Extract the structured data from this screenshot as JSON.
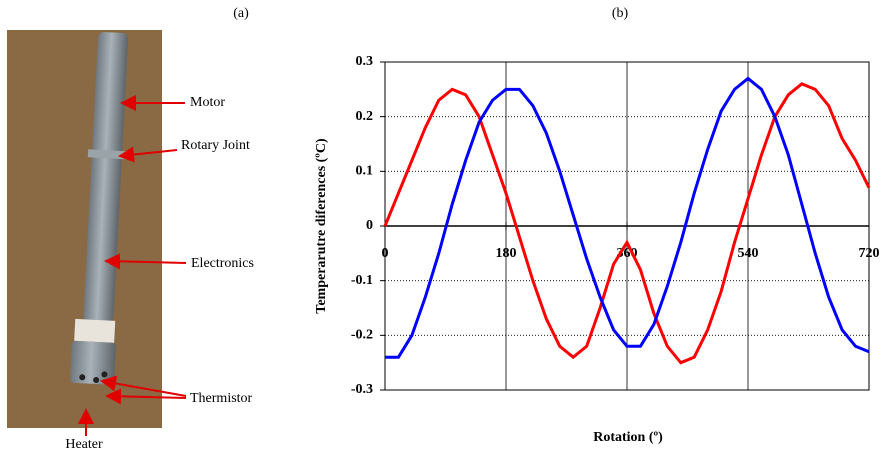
{
  "photo": {
    "label": "(a)",
    "callouts": [
      "Motor",
      "Rotary Joint",
      "Electronics",
      "Thermistor",
      "Heater"
    ]
  },
  "chart_data": {
    "type": "line",
    "panel_label": "(b)",
    "x_label": "Rotation (º)",
    "y_label": "Temperarutre diferences (ºC)",
    "x": [
      0,
      20,
      40,
      60,
      80,
      100,
      120,
      140,
      160,
      180,
      200,
      220,
      240,
      260,
      280,
      300,
      320,
      340,
      360,
      380,
      400,
      420,
      440,
      460,
      480,
      500,
      520,
      540,
      560,
      580,
      600,
      620,
      640,
      660,
      680,
      700,
      720
    ],
    "series": [
      {
        "color": "#ff0000",
        "values": [
          0,
          0.06,
          0.12,
          0.18,
          0.23,
          0.25,
          0.24,
          0.2,
          0.13,
          0.06,
          -0.02,
          -0.1,
          -0.17,
          -0.22,
          -0.24,
          -0.22,
          -0.15,
          -0.07,
          -0.03,
          -0.08,
          -0.16,
          -0.22,
          -0.25,
          -0.24,
          -0.19,
          -0.12,
          -0.03,
          0.05,
          0.13,
          0.2,
          0.24,
          0.26,
          0.25,
          0.22,
          0.16,
          0.12,
          0.07
        ]
      },
      {
        "color": "#0000ff",
        "values": [
          -0.24,
          -0.24,
          -0.2,
          -0.13,
          -0.05,
          0.04,
          0.12,
          0.19,
          0.23,
          0.25,
          0.25,
          0.22,
          0.17,
          0.1,
          0.02,
          -0.06,
          -0.13,
          -0.19,
          -0.22,
          -0.22,
          -0.18,
          -0.11,
          -0.03,
          0.06,
          0.14,
          0.21,
          0.25,
          0.27,
          0.25,
          0.2,
          0.13,
          0.04,
          -0.05,
          -0.13,
          -0.19,
          -0.22,
          -0.23
        ]
      }
    ],
    "xlim": [
      0,
      720
    ],
    "xticks": [
      0,
      180,
      360,
      540,
      720
    ],
    "ylim": [
      -0.3,
      0.3
    ],
    "yticks": [
      -0.3,
      -0.2,
      -0.1,
      0,
      0.1,
      0.2,
      0.3
    ],
    "grid": true
  }
}
